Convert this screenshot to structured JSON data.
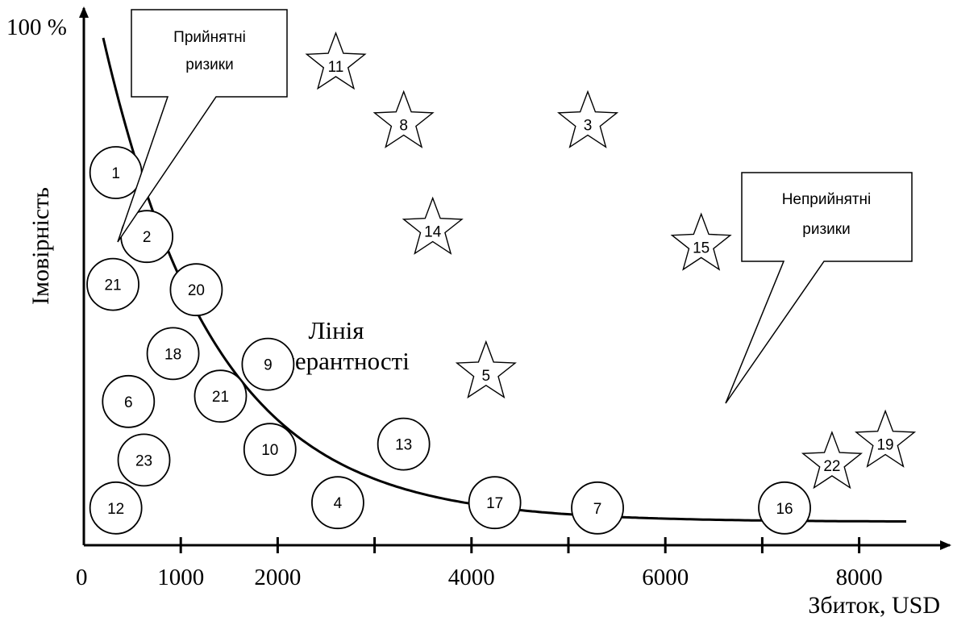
{
  "chart_data": {
    "type": "scatter",
    "xlabel": "Збиток, USD",
    "ylabel": "Імовірність",
    "y_top_label": "100 %",
    "x_origin_label": "0",
    "xlim": [
      0,
      8500
    ],
    "x_tick_labels": [
      {
        "value": 1000,
        "label": "1000"
      },
      {
        "value": 2000,
        "label": "2000"
      },
      {
        "value": 4000,
        "label": "4000"
      },
      {
        "value": 6000,
        "label": "6000"
      },
      {
        "value": 8000,
        "label": "8000"
      }
    ],
    "x_tick_marks": [
      1000,
      2000,
      3000,
      4000,
      5000,
      6000,
      7000,
      8000
    ],
    "grid": false,
    "tolerance_line": {
      "label_line1": "Лінія",
      "label_line2": "толерантності"
    },
    "callouts": {
      "acceptable": {
        "line1": "Прийнятні",
        "line2": "ризики"
      },
      "unacceptable": {
        "line1": "Неприйнятні",
        "line2": "ризики"
      }
    },
    "series": [
      {
        "name": "Прийнятні ризики",
        "marker": "circle",
        "points": [
          {
            "label": "1",
            "x": 330,
            "y": 0.7
          },
          {
            "label": "2",
            "x": 650,
            "y": 0.58
          },
          {
            "label": "21",
            "x": 300,
            "y": 0.49
          },
          {
            "label": "20",
            "x": 1160,
            "y": 0.48
          },
          {
            "label": "18",
            "x": 920,
            "y": 0.36
          },
          {
            "label": "9",
            "x": 1900,
            "y": 0.34
          },
          {
            "label": "6",
            "x": 460,
            "y": 0.27
          },
          {
            "label": "21",
            "x": 1410,
            "y": 0.28
          },
          {
            "label": "10",
            "x": 1920,
            "y": 0.18
          },
          {
            "label": "13",
            "x": 3300,
            "y": 0.19
          },
          {
            "label": "23",
            "x": 620,
            "y": 0.16
          },
          {
            "label": "12",
            "x": 330,
            "y": 0.07
          },
          {
            "label": "4",
            "x": 2620,
            "y": 0.08
          },
          {
            "label": "17",
            "x": 4240,
            "y": 0.08
          },
          {
            "label": "7",
            "x": 5300,
            "y": 0.07
          },
          {
            "label": "16",
            "x": 7230,
            "y": 0.07
          }
        ]
      },
      {
        "name": "Неприйнятні ризики",
        "marker": "star",
        "points": [
          {
            "label": "11",
            "x": 2600,
            "y": 0.9
          },
          {
            "label": "8",
            "x": 3300,
            "y": 0.79
          },
          {
            "label": "3",
            "x": 5200,
            "y": 0.79
          },
          {
            "label": "14",
            "x": 3600,
            "y": 0.59
          },
          {
            "label": "15",
            "x": 6370,
            "y": 0.56
          },
          {
            "label": "5",
            "x": 4150,
            "y": 0.32
          },
          {
            "label": "22",
            "x": 7720,
            "y": 0.15
          },
          {
            "label": "19",
            "x": 8270,
            "y": 0.19
          }
        ]
      }
    ]
  }
}
